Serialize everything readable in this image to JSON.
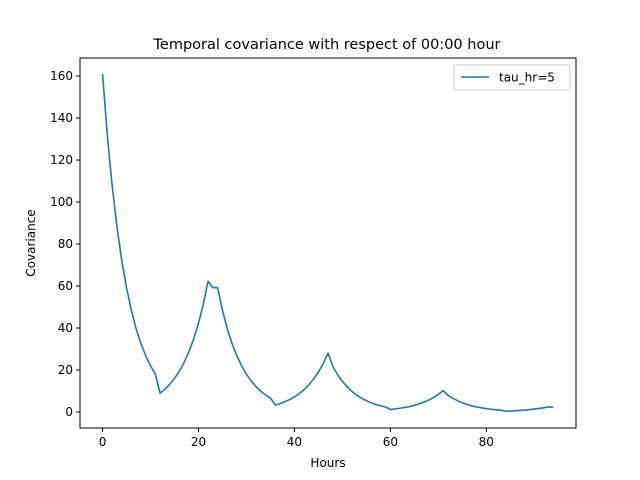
{
  "chart_data": {
    "type": "line",
    "title": "Temporal covariance with respect of 00:00 hour",
    "xlabel": "Hours",
    "ylabel": "Covariance",
    "xlim": [
      -4.7,
      98.7
    ],
    "ylim": [
      -7.6,
      168.6
    ],
    "xticks": [
      0,
      20,
      40,
      60,
      80
    ],
    "yticks": [
      0,
      20,
      40,
      60,
      80,
      100,
      120,
      140,
      160
    ],
    "grid": false,
    "legend_position": "upper right",
    "series": [
      {
        "name": "tau_hr=5",
        "color": "#1f77b4",
        "x": [
          0,
          1,
          2,
          3,
          4,
          5,
          6,
          7,
          8,
          9,
          10,
          11,
          12,
          13,
          14,
          15,
          16,
          17,
          18,
          19,
          20,
          21,
          22,
          23,
          24,
          25,
          26,
          27,
          28,
          29,
          30,
          31,
          32,
          33,
          34,
          35,
          36,
          37,
          38,
          39,
          40,
          41,
          42,
          43,
          44,
          45,
          46,
          47,
          48,
          49,
          50,
          51,
          52,
          53,
          54,
          55,
          56,
          57,
          58,
          59,
          60,
          61,
          62,
          63,
          64,
          65,
          66,
          67,
          68,
          69,
          70,
          71,
          72,
          73,
          74,
          75,
          76,
          77,
          78,
          79,
          80,
          81,
          82,
          83,
          84,
          85,
          86,
          87,
          88,
          89,
          90,
          91,
          92,
          93,
          94
        ],
        "values": [
          161.0,
          131.8,
          107.9,
          88.3,
          72.3,
          59.2,
          48.5,
          39.7,
          32.6,
          26.8,
          22.0,
          18.1,
          9.0,
          10.8,
          13.2,
          16.0,
          19.4,
          23.6,
          28.7,
          34.8,
          42.3,
          51.3,
          62.3,
          59.2,
          59.2,
          48.5,
          39.7,
          32.6,
          26.8,
          22.0,
          18.0,
          14.8,
          12.1,
          9.9,
          8.1,
          6.7,
          3.3,
          4.0,
          4.9,
          5.9,
          7.2,
          8.7,
          10.6,
          12.9,
          15.7,
          19.0,
          23.1,
          28.1,
          21.8,
          17.8,
          14.6,
          12.0,
          9.8,
          8.0,
          6.6,
          5.4,
          4.4,
          3.6,
          3.0,
          2.4,
          1.2,
          1.5,
          1.8,
          2.2,
          2.6,
          3.2,
          3.9,
          4.7,
          5.7,
          6.9,
          8.4,
          10.2,
          8.0,
          6.6,
          5.4,
          4.4,
          3.6,
          2.9,
          2.4,
          2.0,
          1.6,
          1.3,
          1.1,
          0.9,
          0.4,
          0.5,
          0.6,
          0.8,
          0.9,
          1.1,
          1.4,
          1.7,
          2.0,
          2.5,
          2.2
        ]
      }
    ]
  }
}
